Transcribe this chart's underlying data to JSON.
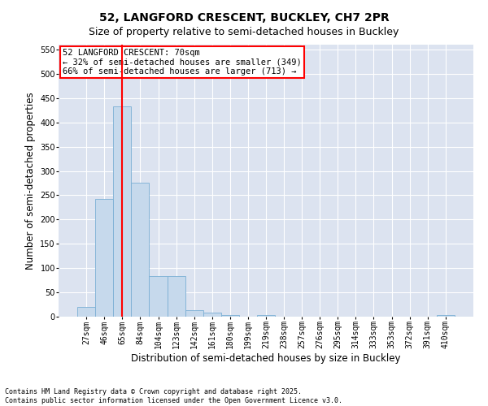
{
  "title": "52, LANGFORD CRESCENT, BUCKLEY, CH7 2PR",
  "subtitle": "Size of property relative to semi-detached houses in Buckley",
  "xlabel": "Distribution of semi-detached houses by size in Buckley",
  "ylabel": "Number of semi-detached properties",
  "categories": [
    "27sqm",
    "46sqm",
    "65sqm",
    "84sqm",
    "104sqm",
    "123sqm",
    "142sqm",
    "161sqm",
    "180sqm",
    "199sqm",
    "219sqm",
    "238sqm",
    "257sqm",
    "276sqm",
    "295sqm",
    "314sqm",
    "333sqm",
    "353sqm",
    "372sqm",
    "391sqm",
    "410sqm"
  ],
  "values": [
    20,
    243,
    433,
    275,
    83,
    83,
    13,
    8,
    3,
    0,
    4,
    0,
    0,
    0,
    0,
    0,
    0,
    0,
    0,
    0,
    3
  ],
  "bar_color": "#c6d9ec",
  "bar_edge_color": "#7bafd4",
  "property_line_x": 2,
  "property_line_color": "red",
  "annotation_title": "52 LANGFORD CRESCENT: 70sqm",
  "annotation_line1": "← 32% of semi-detached houses are smaller (349)",
  "annotation_line2": "66% of semi-detached houses are larger (713) →",
  "annotation_box_color": "white",
  "annotation_box_edge": "red",
  "ylim": [
    0,
    560
  ],
  "yticks": [
    0,
    50,
    100,
    150,
    200,
    250,
    300,
    350,
    400,
    450,
    500,
    550
  ],
  "plot_background": "#dce3f0",
  "footer": "Contains HM Land Registry data © Crown copyright and database right 2025.\nContains public sector information licensed under the Open Government Licence v3.0.",
  "title_fontsize": 10,
  "subtitle_fontsize": 9,
  "axis_label_fontsize": 8.5,
  "tick_fontsize": 7,
  "annotation_fontsize": 7.5,
  "footer_fontsize": 6
}
